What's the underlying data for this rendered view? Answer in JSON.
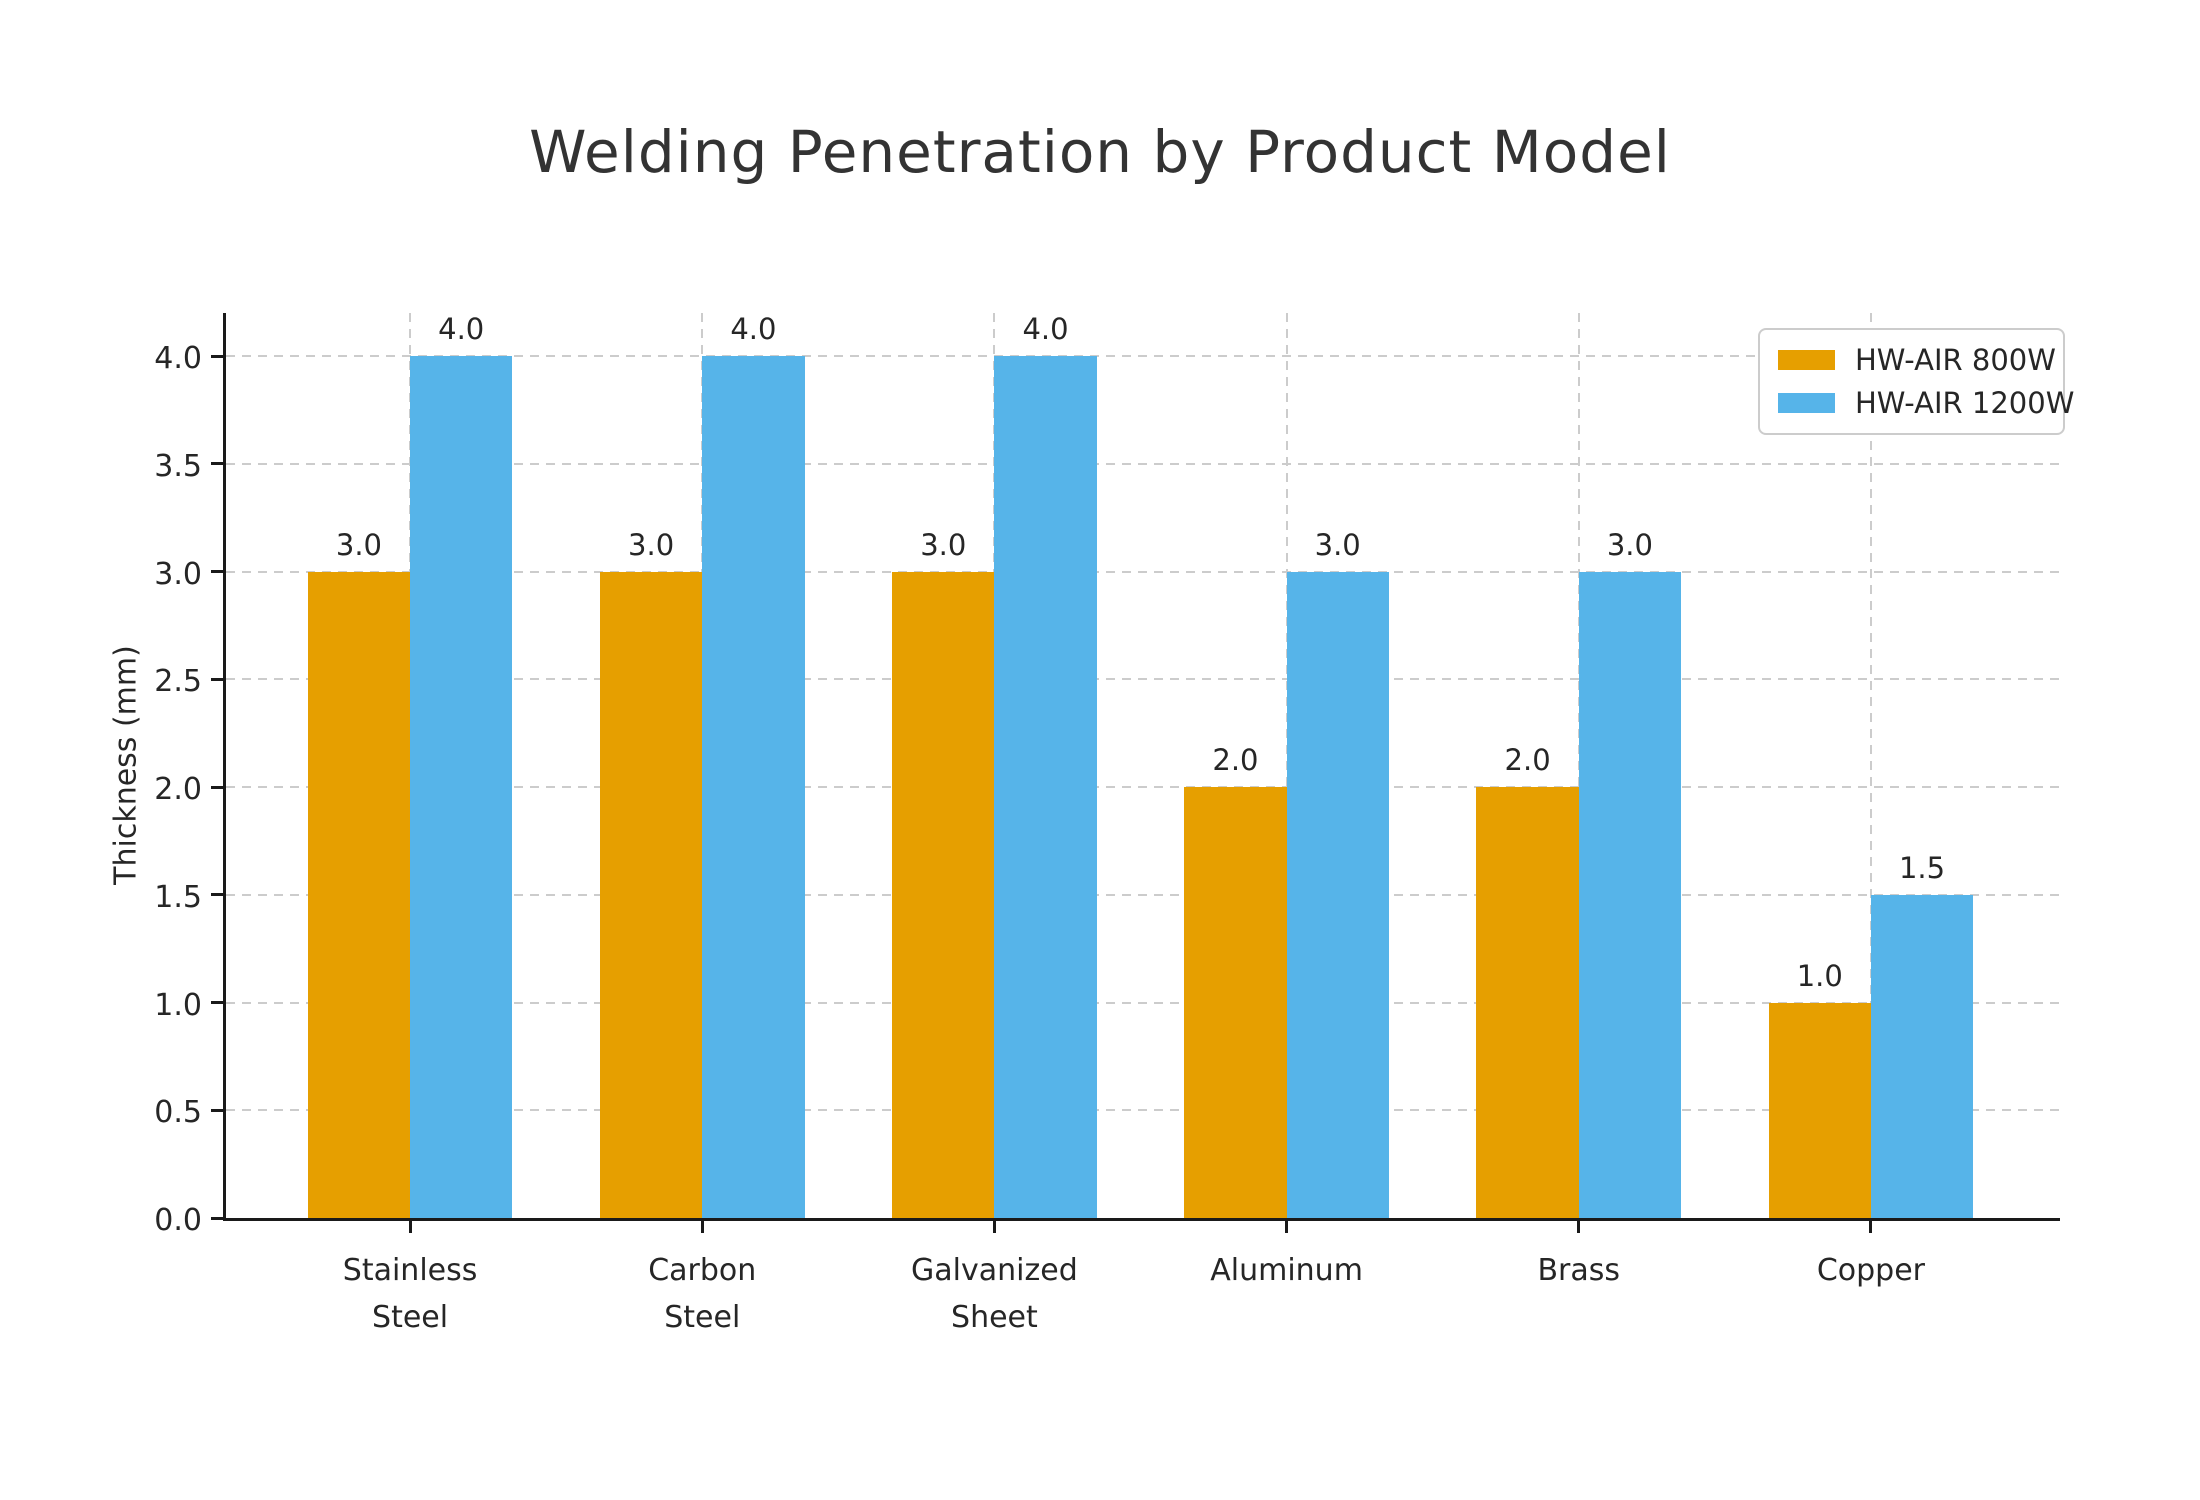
{
  "chart_data": {
    "type": "bar",
    "title": "Welding Penetration by Product Model",
    "xlabel": "",
    "ylabel": "Thickness (mm)",
    "categories": [
      "Stainless\nSteel",
      "Carbon\nSteel",
      "Galvanized\nSheet",
      "Aluminum",
      "Brass",
      "Copper"
    ],
    "series": [
      {
        "name": "HW-AIR 800W",
        "color": "#E69F00",
        "values": [
          3.0,
          3.0,
          3.0,
          2.0,
          2.0,
          1.0
        ],
        "value_labels": [
          "3.0",
          "3.0",
          "3.0",
          "2.0",
          "2.0",
          "1.0"
        ]
      },
      {
        "name": "HW-AIR 1200W",
        "color": "#56B4E9",
        "values": [
          4.0,
          4.0,
          4.0,
          3.0,
          3.0,
          1.5
        ],
        "value_labels": [
          "4.0",
          "4.0",
          "4.0",
          "3.0",
          "3.0",
          "1.5"
        ]
      }
    ],
    "ylim": [
      0,
      4.2
    ],
    "yticks": [
      0,
      0.5,
      1,
      1.5,
      2,
      2.5,
      3,
      3.5,
      4
    ],
    "ytick_labels": [
      "0.0",
      "0.5",
      "1.0",
      "1.5",
      "2.0",
      "2.5",
      "3.0",
      "3.5",
      "4.0"
    ],
    "grid": {
      "horizontal": true,
      "vertical": true,
      "style": "dashed",
      "color": "#cccccc"
    },
    "legend": {
      "position": "upper-right"
    }
  }
}
